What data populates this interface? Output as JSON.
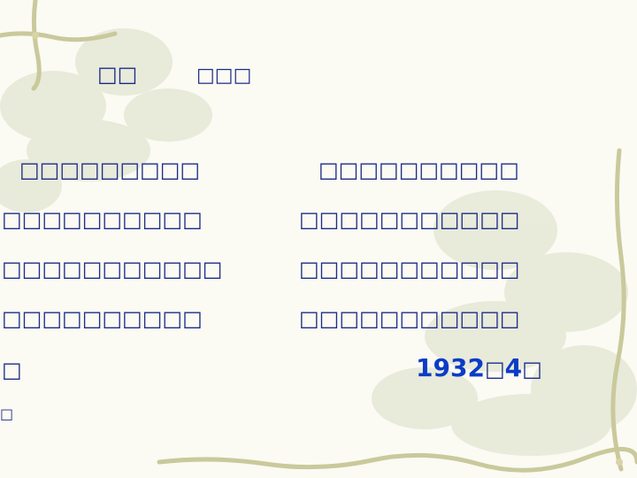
{
  "slide": {
    "heading": {
      "left": "□□",
      "right": "□□□"
    },
    "left_column": [
      "□□□□□□□□□",
      "□□□□□□□□□□",
      "□□□□□□□□□□□",
      "□□□□□□□□□□",
      "□",
      "□"
    ],
    "right_column": [
      "□□□□□□□□□□",
      "□□□□□□□□□□□",
      "□□□□□□□□□□□",
      "□□□□□□□□□□□"
    ],
    "date": {
      "year": "1932",
      "sep": "□",
      "month": "4",
      "tail": "□"
    }
  },
  "colors": {
    "text": "#1d2c86",
    "date": "#0b3cc7",
    "background": "#fbfaf3",
    "vine": "#c8c89a",
    "flower": "#e6e8d6"
  }
}
